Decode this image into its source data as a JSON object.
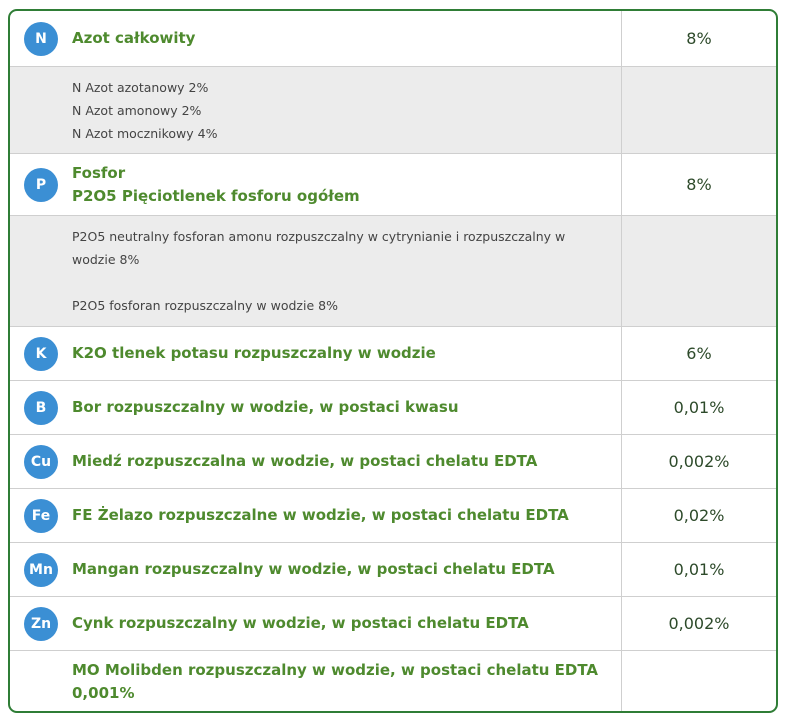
{
  "rows": [
    {
      "badge": "N",
      "label": "Azot całkowity",
      "value": "8%"
    },
    {
      "sub": [
        "N Azot azotanowy 2%",
        "N Azot amonowy 2%",
        "N Azot mocznikowy 4%"
      ]
    },
    {
      "badge": "P",
      "label_line1": "Fosfor",
      "label_line2": "P2O5 Pięciotlenek fosforu ogółem",
      "value": "8%"
    },
    {
      "sub_line1": "P2O5 neutralny fosforan amonu rozpuszczalny w cytrynianie i rozpuszczalny w",
      "sub_line2": "wodzie 8%",
      "sub_line3": "P2O5 fosforan rozpuszczalny w wodzie 8%"
    },
    {
      "badge": "K",
      "label": "K2O tlenek potasu rozpuszczalny w wodzie",
      "value": "6%"
    },
    {
      "badge": "B",
      "label": "Bor rozpuszczalny w wodzie, w postaci kwasu",
      "value": "0,01%"
    },
    {
      "badge": "Cu",
      "label": "Miedź rozpuszczalna w wodzie, w postaci chelatu EDTA",
      "value": "0,002%"
    },
    {
      "badge": "Fe",
      "label": "FE Żelazo rozpuszczalne w wodzie, w postaci chelatu EDTA",
      "value": "0,02%"
    },
    {
      "badge": "Mn",
      "label": "Mangan rozpuszczalny w wodzie, w postaci chelatu EDTA",
      "value": "0,01%"
    },
    {
      "badge": "Zn",
      "label": "Cynk rozpuszczalny w wodzie, w postaci chelatu EDTA",
      "value": "0,002%"
    },
    {
      "label_line1": "MO Molibden rozpuszczalny w wodzie, w postaci chelatu EDTA",
      "label_line2": "0,001%"
    }
  ],
  "colors": {
    "badge": "#3b8fd4",
    "label": "#4e8a2e",
    "border": "#2f7d36",
    "sub_bg": "#ececec"
  }
}
